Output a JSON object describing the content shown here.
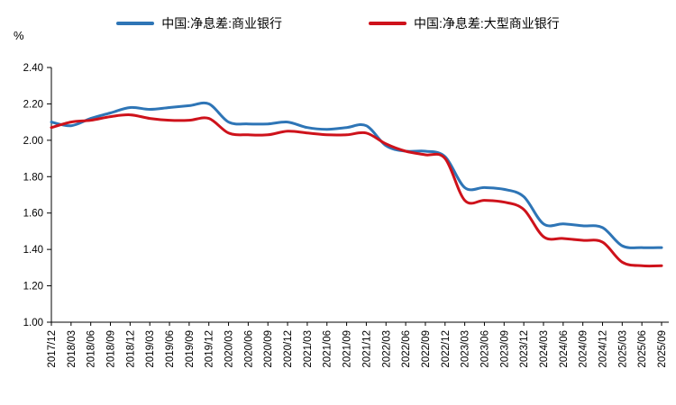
{
  "unit_label": "%",
  "chart_data": {
    "type": "line",
    "title": "",
    "xlabel": "",
    "ylabel": "%",
    "grid": false,
    "legend_position": "top-center",
    "ylim": [
      1.0,
      2.4
    ],
    "y_tick_labels": [
      "2.40",
      "2.20",
      "2.00",
      "1.80",
      "1.60",
      "1.40",
      "1.20",
      "1.00"
    ],
    "x": [
      "2017/12",
      "2018/03",
      "2018/06",
      "2018/09",
      "2018/12",
      "2019/03",
      "2019/06",
      "2019/09",
      "2019/12",
      "2020/03",
      "2020/06",
      "2020/09",
      "2020/12",
      "2021/03",
      "2021/06",
      "2021/09",
      "2021/12",
      "2022/03",
      "2022/06",
      "2022/09",
      "2022/12",
      "2023/03",
      "2023/06",
      "2023/09",
      "2023/12",
      "2024/03",
      "2024/06",
      "2024/09",
      "2024/12",
      "2025/03",
      "2025/06",
      "2025/09"
    ],
    "series": [
      {
        "name": "中国:净息差:商业银行",
        "color": "#2E75B6",
        "values": [
          2.1,
          2.08,
          2.12,
          2.15,
          2.18,
          2.17,
          2.18,
          2.19,
          2.2,
          2.1,
          2.09,
          2.09,
          2.1,
          2.07,
          2.06,
          2.07,
          2.08,
          1.97,
          1.94,
          1.94,
          1.91,
          1.74,
          1.74,
          1.73,
          1.69,
          1.54,
          1.54,
          1.53,
          1.52,
          1.42,
          1.41,
          1.41
        ]
      },
      {
        "name": "中国:净息差:大型商业银行",
        "color": "#CE121B",
        "values": [
          2.07,
          2.1,
          2.11,
          2.13,
          2.14,
          2.12,
          2.11,
          2.11,
          2.12,
          2.04,
          2.03,
          2.03,
          2.05,
          2.04,
          2.03,
          2.03,
          2.04,
          1.98,
          1.94,
          1.92,
          1.9,
          1.67,
          1.67,
          1.66,
          1.62,
          1.47,
          1.46,
          1.45,
          1.44,
          1.33,
          1.31,
          1.31
        ]
      }
    ],
    "axis_color": "#000000",
    "tick_font_size": 11.5
  }
}
